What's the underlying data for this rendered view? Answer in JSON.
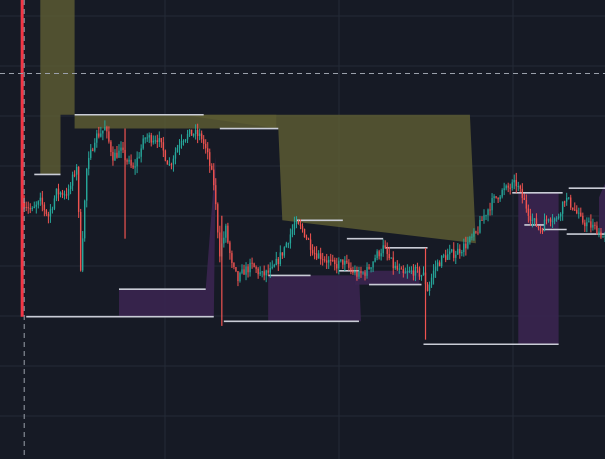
{
  "theme": {
    "background": "#161a25",
    "grid": "#242a36",
    "candle_up": "#26a69a",
    "candle_down": "#ef5350",
    "upper_fill": "#5a5a32",
    "lower_fill": "#3a2550",
    "level_line": "#c9ccd6",
    "crosshair": "#9aa0ab",
    "signal_bar": "#f23645"
  },
  "chart_data": {
    "type": "candlestick",
    "title": "",
    "xlabel": "",
    "ylabel": "",
    "grid": true,
    "ylim": [
      0,
      100
    ],
    "bar_count": 300,
    "crosshair": {
      "x": 12,
      "y": 84
    },
    "signal_bar": {
      "x": 11,
      "high": 100,
      "low": 31
    },
    "upper_levels": [
      {
        "start": 17,
        "end": 30,
        "value": 62
      },
      {
        "start": 37,
        "end": 101,
        "value": 75
      },
      {
        "start": 109,
        "end": 138,
        "value": 72
      },
      {
        "start": 147,
        "end": 170,
        "value": 52
      },
      {
        "start": 172,
        "end": 190,
        "value": 48
      },
      {
        "start": 191,
        "end": 212,
        "value": 46
      },
      {
        "start": 254,
        "end": 279,
        "value": 58
      },
      {
        "start": 282,
        "end": 300,
        "value": 59
      }
    ],
    "lower_levels": [
      {
        "start": 13,
        "end": 106,
        "value": 31
      },
      {
        "start": 59,
        "end": 102,
        "value": 37
      },
      {
        "start": 111,
        "end": 178,
        "value": 30
      },
      {
        "start": 133,
        "end": 154,
        "value": 40
      },
      {
        "start": 168,
        "end": 178,
        "value": 41
      },
      {
        "start": 183,
        "end": 209,
        "value": 38
      },
      {
        "start": 210,
        "end": 277,
        "value": 25
      },
      {
        "start": 260,
        "end": 270,
        "value": 51
      },
      {
        "start": 269,
        "end": 281,
        "value": 50
      },
      {
        "start": 281,
        "end": 300,
        "value": 49
      }
    ],
    "upper_zones": [
      {
        "points": [
          [
            20,
            100
          ],
          [
            30,
            100
          ],
          [
            30,
            62
          ],
          [
            20,
            62
          ]
        ]
      },
      {
        "points": [
          [
            30,
            100
          ],
          [
            30,
            75
          ],
          [
            37,
            75
          ],
          [
            37,
            100
          ]
        ]
      },
      {
        "points": [
          [
            37,
            75
          ],
          [
            137,
            75
          ],
          [
            137,
            72
          ],
          [
            37,
            72
          ]
        ]
      },
      {
        "points": [
          [
            90,
            75
          ],
          [
            233,
            75
          ],
          [
            236,
            47
          ],
          [
            140,
            52
          ],
          [
            138,
            72
          ]
        ]
      }
    ],
    "lower_zones": [
      {
        "points": [
          [
            59,
            37
          ],
          [
            102,
            37
          ],
          [
            107,
            66
          ],
          [
            106,
            31
          ],
          [
            59,
            31
          ]
        ]
      },
      {
        "points": [
          [
            133,
            40
          ],
          [
            178,
            40
          ],
          [
            179,
            30
          ],
          [
            133,
            30
          ]
        ]
      },
      {
        "points": [
          [
            176,
            41
          ],
          [
            208,
            41
          ],
          [
            208,
            38
          ],
          [
            176,
            38
          ]
        ]
      },
      {
        "points": [
          [
            257,
            58
          ],
          [
            277,
            58
          ],
          [
            277,
            25
          ],
          [
            257,
            25
          ]
        ]
      },
      {
        "points": [
          [
            297,
            57
          ],
          [
            300,
            60
          ],
          [
            300,
            49
          ],
          [
            297,
            49
          ]
        ]
      }
    ],
    "price_path": [
      [
        12,
        56
      ],
      [
        16,
        54
      ],
      [
        20,
        56
      ],
      [
        24,
        53
      ],
      [
        28,
        58
      ],
      [
        34,
        58
      ],
      [
        38,
        64
      ],
      [
        40,
        42
      ],
      [
        43,
        63
      ],
      [
        47,
        70
      ],
      [
        52,
        72
      ],
      [
        56,
        66
      ],
      [
        60,
        67
      ],
      [
        66,
        63
      ],
      [
        72,
        70
      ],
      [
        78,
        70
      ],
      [
        84,
        64
      ],
      [
        90,
        70
      ],
      [
        96,
        71
      ],
      [
        100,
        70
      ],
      [
        103,
        66
      ],
      [
        106,
        60
      ],
      [
        109,
        45
      ],
      [
        112,
        50
      ],
      [
        115,
        42
      ],
      [
        118,
        39
      ],
      [
        121,
        41
      ],
      [
        125,
        42
      ],
      [
        130,
        40
      ],
      [
        135,
        41
      ],
      [
        140,
        45
      ],
      [
        143,
        48
      ],
      [
        146,
        51
      ],
      [
        150,
        50
      ],
      [
        156,
        45
      ],
      [
        160,
        44
      ],
      [
        166,
        42
      ],
      [
        170,
        43
      ],
      [
        174,
        41
      ],
      [
        178,
        40
      ],
      [
        182,
        41
      ],
      [
        186,
        44
      ],
      [
        190,
        46
      ],
      [
        195,
        42
      ],
      [
        200,
        40
      ],
      [
        205,
        41
      ],
      [
        210,
        40
      ],
      [
        212,
        37
      ],
      [
        216,
        42
      ],
      [
        220,
        44
      ],
      [
        226,
        45
      ],
      [
        232,
        47
      ],
      [
        236,
        49
      ],
      [
        240,
        53
      ],
      [
        244,
        56
      ],
      [
        248,
        58
      ],
      [
        252,
        59
      ],
      [
        256,
        60
      ],
      [
        260,
        56
      ],
      [
        264,
        52
      ],
      [
        268,
        50
      ],
      [
        272,
        53
      ],
      [
        276,
        52
      ],
      [
        280,
        57
      ],
      [
        284,
        55
      ],
      [
        288,
        52
      ],
      [
        292,
        51
      ],
      [
        296,
        50
      ],
      [
        300,
        48
      ]
    ],
    "tall_wicks": [
      {
        "x": 62,
        "high": 72,
        "low": 48
      },
      {
        "x": 110,
        "high": 53,
        "low": 29
      },
      {
        "x": 211,
        "high": 46,
        "low": 26
      }
    ]
  }
}
